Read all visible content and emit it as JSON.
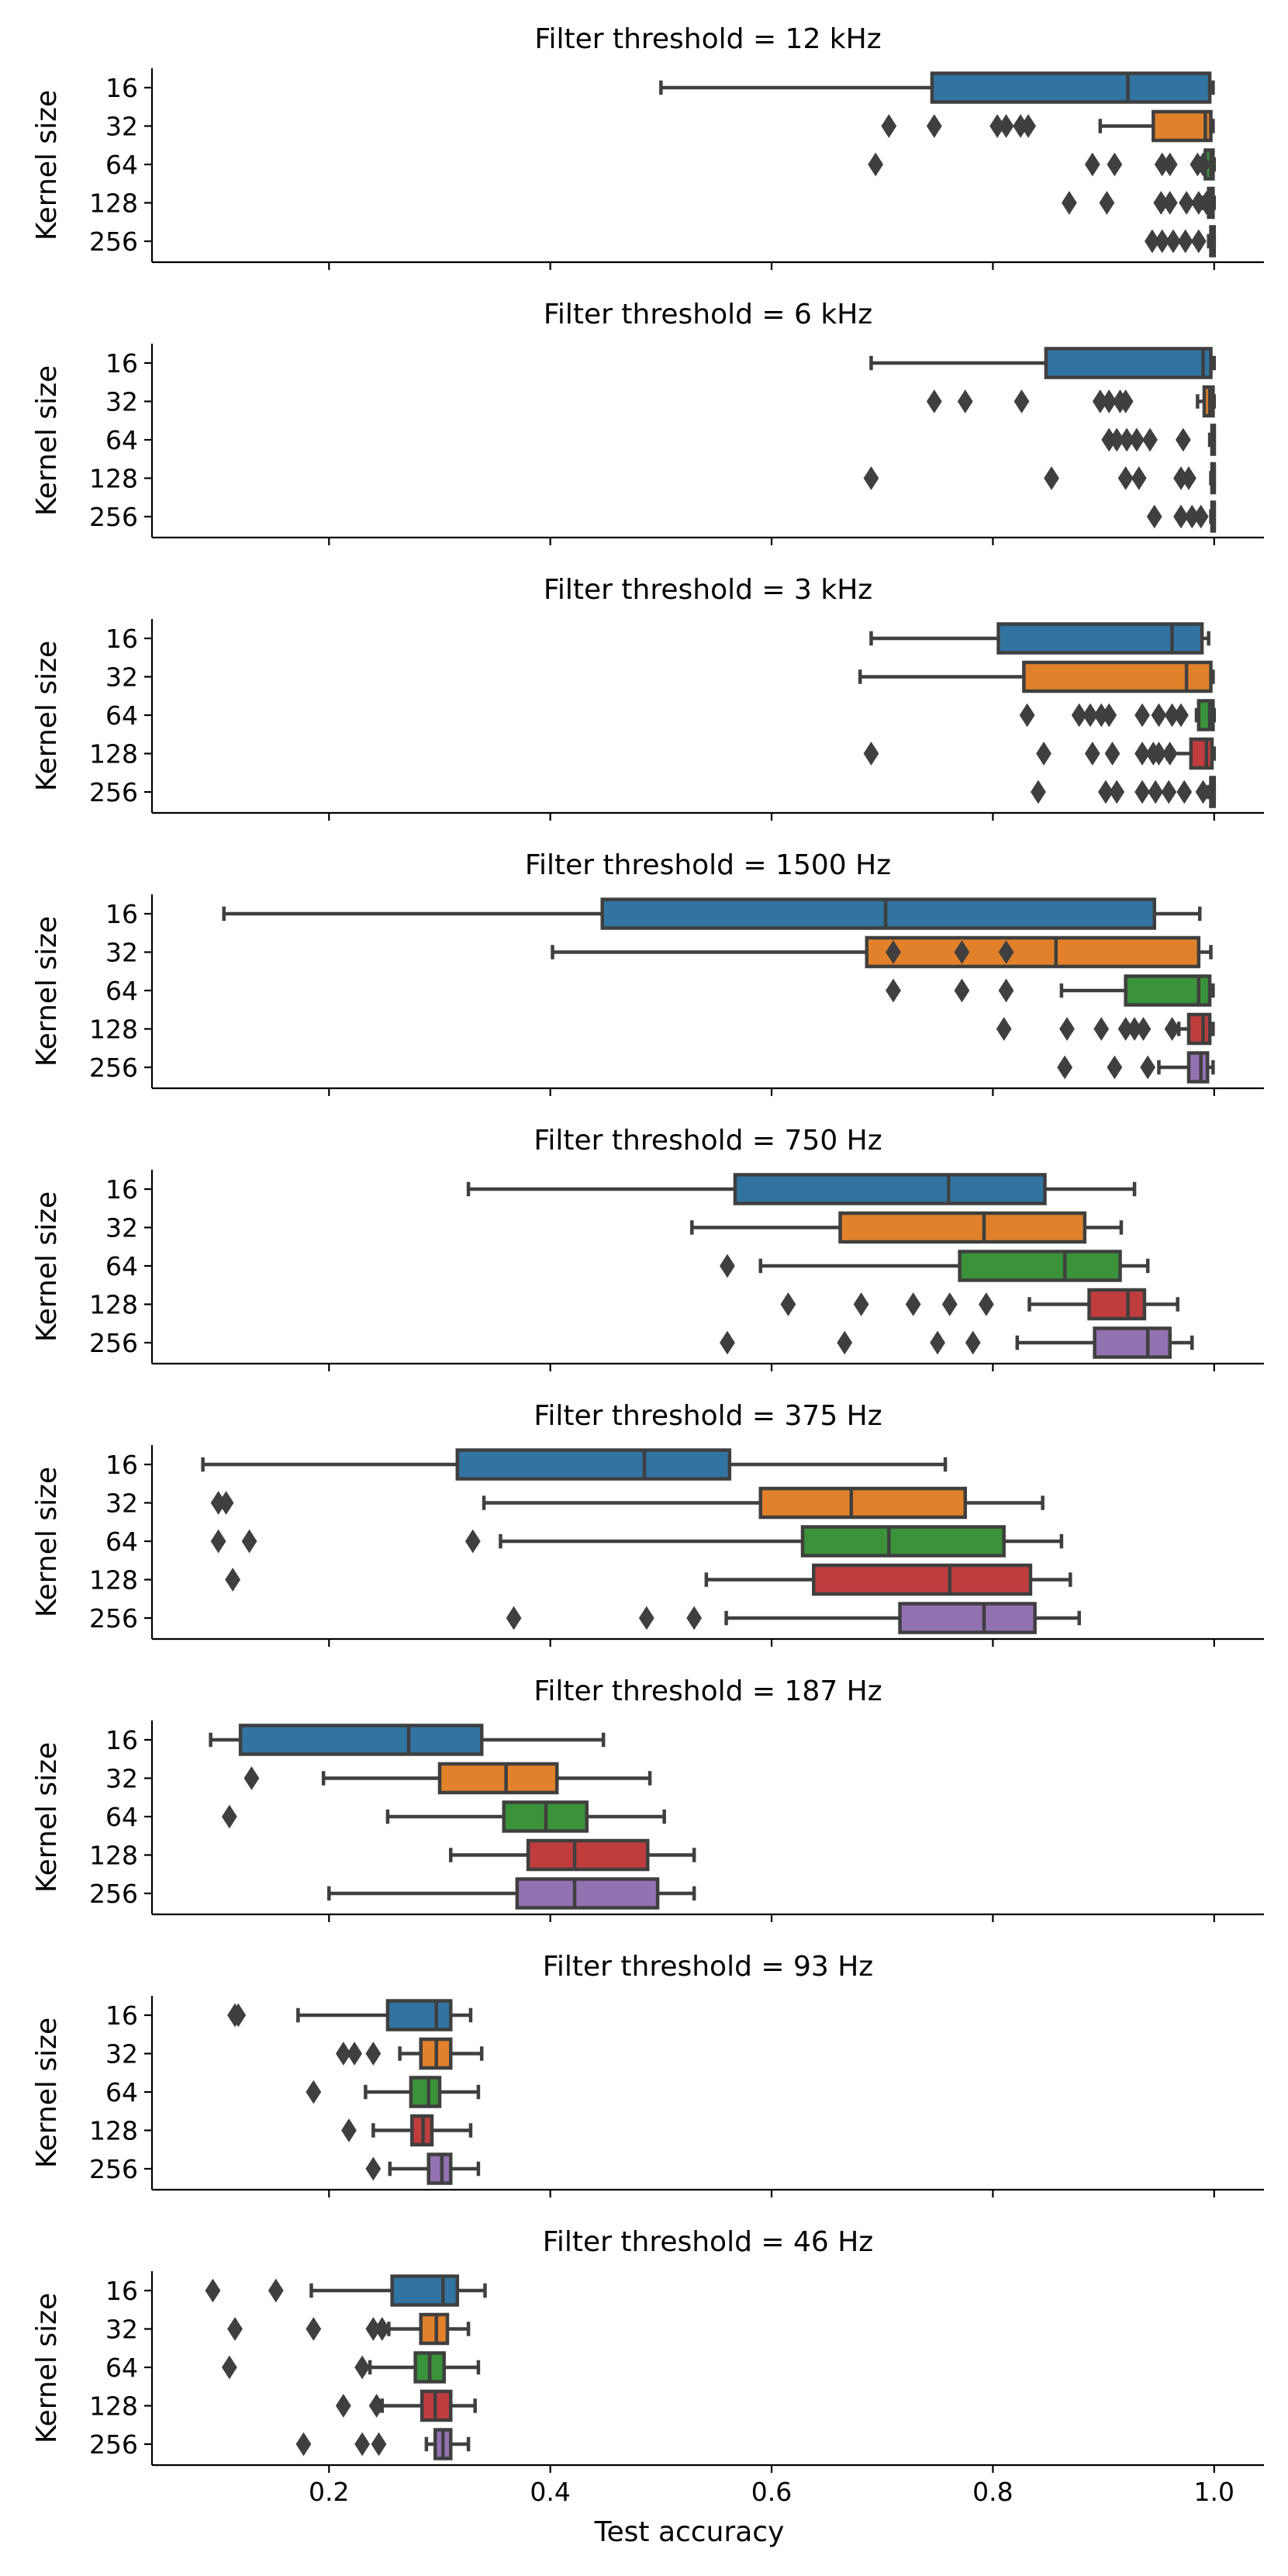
{
  "chart_data": {
    "type": "boxplot",
    "orientation": "horizontal",
    "xlabel": "Test accuracy",
    "ylabel": "Kernel size",
    "xlim": [
      0.04,
      1.045
    ],
    "xticks": [
      0.2,
      0.4,
      0.6,
      0.8,
      1.0
    ],
    "xtick_labels": [
      "0.2",
      "0.4",
      "0.6",
      "0.8",
      "1.0"
    ],
    "categories": [
      "16",
      "32",
      "64",
      "128",
      "256"
    ],
    "colors": [
      "#3274a1",
      "#e1812c",
      "#3a923a",
      "#c03d3e",
      "#9372b2"
    ],
    "panels": [
      {
        "title": "Filter threshold = 12 kHz",
        "boxes": [
          {
            "category": "16",
            "whislo": 0.5,
            "q1": 0.745,
            "med": 0.922,
            "q3": 0.996,
            "whishi": 0.999,
            "fliers": []
          },
          {
            "category": "32",
            "whislo": 0.897,
            "q1": 0.945,
            "med": 0.992,
            "q3": 0.997,
            "whishi": 0.999,
            "fliers": [
              0.706,
              0.747,
              0.804,
              0.812,
              0.825,
              0.832
            ]
          },
          {
            "category": "64",
            "whislo": 0.985,
            "q1": 0.992,
            "med": 0.997,
            "q3": 0.999,
            "whishi": 1.0,
            "fliers": [
              0.694,
              0.89,
              0.91,
              0.953,
              0.96,
              0.985,
              0.99
            ]
          },
          {
            "category": "128",
            "whislo": 0.99,
            "q1": 0.995,
            "med": 0.998,
            "q3": 0.999,
            "whishi": 1.0,
            "fliers": [
              0.869,
              0.903,
              0.952,
              0.96,
              0.975,
              0.986,
              0.993
            ]
          },
          {
            "category": "256",
            "whislo": 0.995,
            "q1": 0.997,
            "med": 0.999,
            "q3": 1.0,
            "whishi": 1.0,
            "fliers": [
              0.944,
              0.953,
              0.963,
              0.974,
              0.986
            ]
          }
        ]
      },
      {
        "title": "Filter threshold = 6 kHz",
        "boxes": [
          {
            "category": "16",
            "whislo": 0.69,
            "q1": 0.848,
            "med": 0.99,
            "q3": 0.997,
            "whishi": 1.0,
            "fliers": []
          },
          {
            "category": "32",
            "whislo": 0.985,
            "q1": 0.991,
            "med": 0.996,
            "q3": 0.999,
            "whishi": 1.0,
            "fliers": [
              0.747,
              0.775,
              0.826,
              0.897,
              0.905,
              0.915,
              0.92
            ]
          },
          {
            "category": "64",
            "whislo": 0.996,
            "q1": 0.998,
            "med": 0.999,
            "q3": 1.0,
            "whishi": 1.0,
            "fliers": [
              0.905,
              0.912,
              0.921,
              0.93,
              0.942,
              0.972
            ]
          },
          {
            "category": "128",
            "whislo": 0.997,
            "q1": 0.998,
            "med": 0.999,
            "q3": 1.0,
            "whishi": 1.0,
            "fliers": [
              0.69,
              0.853,
              0.92,
              0.932,
              0.97,
              0.977
            ]
          },
          {
            "category": "256",
            "whislo": 0.997,
            "q1": 0.998,
            "med": 0.999,
            "q3": 1.0,
            "whishi": 1.0,
            "fliers": [
              0.946,
              0.97,
              0.98,
              0.988
            ]
          }
        ]
      },
      {
        "title": "Filter threshold = 3 kHz",
        "boxes": [
          {
            "category": "16",
            "whislo": 0.69,
            "q1": 0.805,
            "med": 0.962,
            "q3": 0.989,
            "whishi": 0.995,
            "fliers": []
          },
          {
            "category": "32",
            "whislo": 0.68,
            "q1": 0.828,
            "med": 0.975,
            "q3": 0.997,
            "whishi": 0.999,
            "fliers": []
          },
          {
            "category": "64",
            "whislo": 0.984,
            "q1": 0.986,
            "med": 0.996,
            "q3": 0.999,
            "whishi": 1.0,
            "fliers": [
              0.831,
              0.878,
              0.888,
              0.898,
              0.905,
              0.935,
              0.95,
              0.962,
              0.97
            ]
          },
          {
            "category": "128",
            "whislo": 0.958,
            "q1": 0.979,
            "med": 0.993,
            "q3": 0.998,
            "whishi": 1.0,
            "fliers": [
              0.69,
              0.846,
              0.89,
              0.908,
              0.935,
              0.945,
              0.95,
              0.96
            ]
          },
          {
            "category": "256",
            "whislo": 0.995,
            "q1": 0.997,
            "med": 0.999,
            "q3": 1.0,
            "whishi": 1.0,
            "fliers": [
              0.841,
              0.902,
              0.912,
              0.935,
              0.947,
              0.959,
              0.973,
              0.99
            ]
          }
        ]
      },
      {
        "title": "Filter threshold = 1500 Hz",
        "boxes": [
          {
            "category": "16",
            "whislo": 0.105,
            "q1": 0.447,
            "med": 0.703,
            "q3": 0.946,
            "whishi": 0.987,
            "fliers": []
          },
          {
            "category": "32",
            "whislo": 0.402,
            "q1": 0.686,
            "med": 0.857,
            "q3": 0.986,
            "whishi": 0.997,
            "fliers": [
              0.71,
              0.772,
              0.812
            ]
          },
          {
            "category": "64",
            "whislo": 0.862,
            "q1": 0.92,
            "med": 0.986,
            "q3": 0.996,
            "whishi": 0.999,
            "fliers": [
              0.71,
              0.772,
              0.812
            ]
          },
          {
            "category": "128",
            "whislo": 0.968,
            "q1": 0.977,
            "med": 0.99,
            "q3": 0.996,
            "whishi": 0.999,
            "fliers": [
              0.81,
              0.867,
              0.898,
              0.92,
              0.928,
              0.936,
              0.962
            ]
          },
          {
            "category": "256",
            "whislo": 0.95,
            "q1": 0.977,
            "med": 0.988,
            "q3": 0.994,
            "whishi": 0.999,
            "fliers": [
              0.865,
              0.91,
              0.94
            ]
          }
        ]
      },
      {
        "title": "Filter threshold = 750 Hz",
        "boxes": [
          {
            "category": "16",
            "whislo": 0.326,
            "q1": 0.567,
            "med": 0.76,
            "q3": 0.847,
            "whishi": 0.928,
            "fliers": []
          },
          {
            "category": "32",
            "whislo": 0.528,
            "q1": 0.662,
            "med": 0.792,
            "q3": 0.883,
            "whishi": 0.916,
            "fliers": []
          },
          {
            "category": "64",
            "whislo": 0.59,
            "q1": 0.77,
            "med": 0.865,
            "q3": 0.915,
            "whishi": 0.94,
            "fliers": [
              0.56
            ]
          },
          {
            "category": "128",
            "whislo": 0.833,
            "q1": 0.887,
            "med": 0.922,
            "q3": 0.937,
            "whishi": 0.967,
            "fliers": [
              0.615,
              0.681,
              0.728,
              0.761,
              0.794
            ]
          },
          {
            "category": "256",
            "whislo": 0.822,
            "q1": 0.892,
            "med": 0.94,
            "q3": 0.96,
            "whishi": 0.98,
            "fliers": [
              0.56,
              0.666,
              0.75,
              0.782
            ]
          }
        ]
      },
      {
        "title": "Filter threshold = 375 Hz",
        "boxes": [
          {
            "category": "16",
            "whislo": 0.086,
            "q1": 0.316,
            "med": 0.485,
            "q3": 0.562,
            "whishi": 0.757,
            "fliers": []
          },
          {
            "category": "32",
            "whislo": 0.34,
            "q1": 0.59,
            "med": 0.672,
            "q3": 0.775,
            "whishi": 0.845,
            "fliers": [
              0.1,
              0.107
            ]
          },
          {
            "category": "64",
            "whislo": 0.355,
            "q1": 0.628,
            "med": 0.706,
            "q3": 0.81,
            "whishi": 0.862,
            "fliers": [
              0.1,
              0.128,
              0.33
            ]
          },
          {
            "category": "128",
            "whislo": 0.541,
            "q1": 0.638,
            "med": 0.761,
            "q3": 0.834,
            "whishi": 0.87,
            "fliers": [
              0.113
            ]
          },
          {
            "category": "256",
            "whislo": 0.559,
            "q1": 0.716,
            "med": 0.792,
            "q3": 0.838,
            "whishi": 0.878,
            "fliers": [
              0.367,
              0.487,
              0.53
            ]
          }
        ]
      },
      {
        "title": "Filter threshold = 187 Hz",
        "boxes": [
          {
            "category": "16",
            "whislo": 0.093,
            "q1": 0.12,
            "med": 0.272,
            "q3": 0.338,
            "whishi": 0.448,
            "fliers": []
          },
          {
            "category": "32",
            "whislo": 0.195,
            "q1": 0.3,
            "med": 0.36,
            "q3": 0.406,
            "whishi": 0.49,
            "fliers": [
              0.13
            ]
          },
          {
            "category": "64",
            "whislo": 0.253,
            "q1": 0.358,
            "med": 0.396,
            "q3": 0.433,
            "whishi": 0.503,
            "fliers": [
              0.11
            ]
          },
          {
            "category": "128",
            "whislo": 0.31,
            "q1": 0.38,
            "med": 0.422,
            "q3": 0.488,
            "whishi": 0.53,
            "fliers": []
          },
          {
            "category": "256",
            "whislo": 0.2,
            "q1": 0.37,
            "med": 0.422,
            "q3": 0.497,
            "whishi": 0.53,
            "fliers": []
          }
        ]
      },
      {
        "title": "Filter threshold = 93 Hz",
        "boxes": [
          {
            "category": "16",
            "whislo": 0.172,
            "q1": 0.253,
            "med": 0.297,
            "q3": 0.31,
            "whishi": 0.328,
            "fliers": [
              0.115,
              0.118
            ]
          },
          {
            "category": "32",
            "whislo": 0.264,
            "q1": 0.283,
            "med": 0.297,
            "q3": 0.31,
            "whishi": 0.338,
            "fliers": [
              0.213,
              0.223,
              0.24
            ]
          },
          {
            "category": "64",
            "whislo": 0.233,
            "q1": 0.274,
            "med": 0.29,
            "q3": 0.3,
            "whishi": 0.335,
            "fliers": [
              0.186
            ]
          },
          {
            "category": "128",
            "whislo": 0.24,
            "q1": 0.275,
            "med": 0.285,
            "q3": 0.293,
            "whishi": 0.328,
            "fliers": [
              0.218
            ]
          },
          {
            "category": "256",
            "whislo": 0.255,
            "q1": 0.29,
            "med": 0.302,
            "q3": 0.31,
            "whishi": 0.335,
            "fliers": [
              0.24
            ]
          }
        ]
      },
      {
        "title": "Filter threshold = 46 Hz",
        "boxes": [
          {
            "category": "16",
            "whislo": 0.184,
            "q1": 0.257,
            "med": 0.303,
            "q3": 0.316,
            "whishi": 0.341,
            "fliers": [
              0.095,
              0.152
            ]
          },
          {
            "category": "32",
            "whislo": 0.254,
            "q1": 0.283,
            "med": 0.297,
            "q3": 0.307,
            "whishi": 0.326,
            "fliers": [
              0.115,
              0.186,
              0.24,
              0.248
            ]
          },
          {
            "category": "64",
            "whislo": 0.237,
            "q1": 0.278,
            "med": 0.291,
            "q3": 0.304,
            "whishi": 0.335,
            "fliers": [
              0.11,
              0.23
            ]
          },
          {
            "category": "128",
            "whislo": 0.248,
            "q1": 0.284,
            "med": 0.296,
            "q3": 0.31,
            "whishi": 0.332,
            "fliers": [
              0.213,
              0.243
            ]
          },
          {
            "category": "256",
            "whislo": 0.288,
            "q1": 0.296,
            "med": 0.303,
            "q3": 0.31,
            "whishi": 0.326,
            "fliers": [
              0.177,
              0.23,
              0.245
            ]
          }
        ]
      }
    ]
  }
}
